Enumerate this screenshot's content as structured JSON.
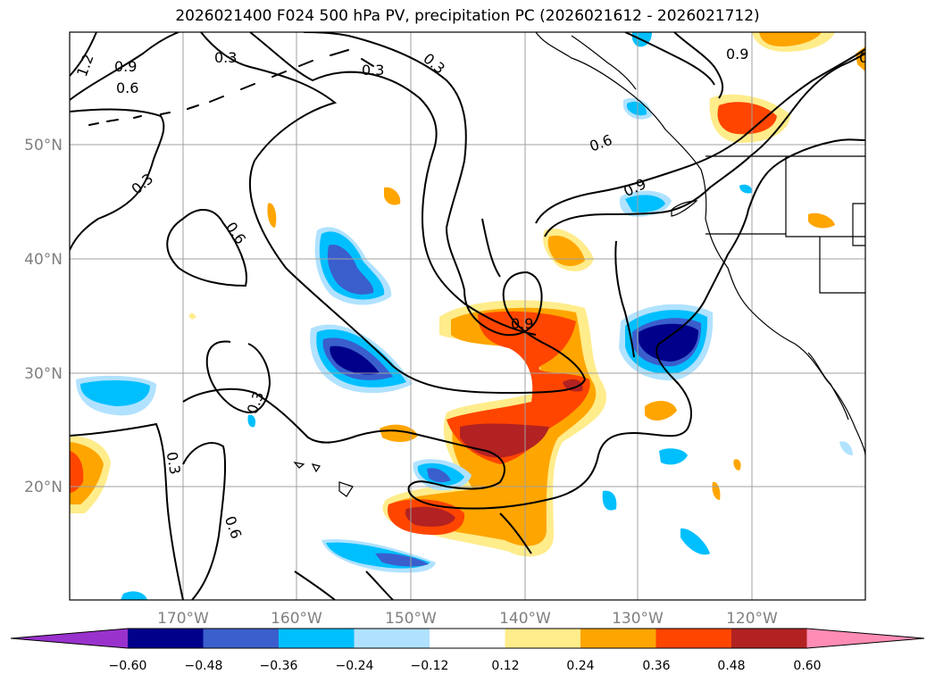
{
  "title": "2026021400 F024 500 hPa PV, precipitation PC (2026021612 - 2026021712)",
  "map": {
    "lon_ticks": [
      "170°W",
      "160°W",
      "150°W",
      "140°W",
      "130°W",
      "120°W"
    ],
    "lat_ticks": [
      "50°N",
      "40°N",
      "30°N",
      "20°N"
    ],
    "contour_labels": [
      "1.2",
      "0.9",
      "0.6",
      "0.3",
      "0.3",
      "0.3",
      "0.3",
      "0.6",
      "0.9",
      "0.6",
      "0.9",
      "0.3",
      "0.6",
      "0.9",
      "0.6",
      "0.3"
    ]
  },
  "colorbar": {
    "tick_labels": [
      "−0.60",
      "−0.48",
      "−0.36",
      "−0.24",
      "−0.12",
      "0.12",
      "0.24",
      "0.36",
      "0.48",
      "0.60"
    ],
    "colors": [
      "#9932cc",
      "#00008b",
      "#3a5fcd",
      "#00bfff",
      "#b0e2ff",
      "#ffffff",
      "#ffec8b",
      "#ffa500",
      "#ff4500",
      "#b22222",
      "#ff8cb4"
    ]
  }
}
